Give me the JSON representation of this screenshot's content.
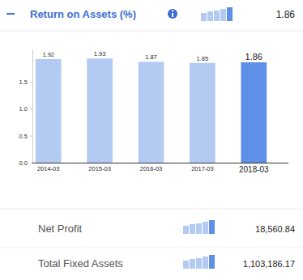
{
  "header": {
    "title": "Return on Assets (%)",
    "value": "1.86"
  },
  "rows": [
    {
      "label": "Net Profit",
      "value": "18,560.84"
    },
    {
      "label": "Total Fixed Assets",
      "value": "1,103,186.17"
    }
  ],
  "chart_data": {
    "type": "bar",
    "categories": [
      "2014-03",
      "2015-03",
      "2016-03",
      "2017-03",
      "2018-03"
    ],
    "values": [
      1.92,
      1.93,
      1.87,
      1.85,
      1.86
    ],
    "colors": [
      "#b3cbf3",
      "#b3cbf3",
      "#b3cbf3",
      "#b3cbf3",
      "#5d90e6"
    ],
    "ylim": [
      0,
      2.1
    ],
    "yticks": [
      {
        "value": 0,
        "label": "0.0"
      },
      {
        "value": 0.5,
        "label": "0.5"
      },
      {
        "value": 1,
        "label": "1.0"
      },
      {
        "value": 1.5,
        "label": "1.5"
      }
    ],
    "data_labels": true
  }
}
